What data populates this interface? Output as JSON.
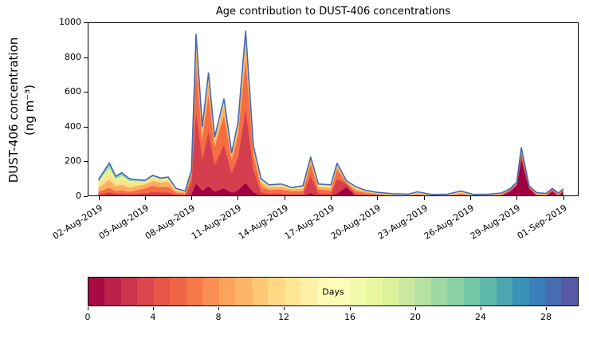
{
  "title": "Age contribution to DUST-406 concentrations",
  "ylabel": {
    "line1": "DUST-406 concentration",
    "line2": "(ng m⁻³)"
  },
  "chart_data": {
    "type": "area",
    "title": "Age contribution to DUST-406 concentrations",
    "xlabel": "",
    "ylabel": "DUST-406 concentration (ng m⁻³)",
    "ylim": [
      0,
      1000
    ],
    "yticks": [
      0,
      200,
      400,
      600,
      800,
      1000
    ],
    "xlim_days": [
      -0.7,
      31.0
    ],
    "xtick_days": [
      0,
      3,
      6,
      9,
      12,
      15,
      18,
      21,
      24,
      27,
      30
    ],
    "xtick_labels": [
      "02-Aug-2019",
      "05-Aug-2019",
      "08-Aug-2019",
      "11-Aug-2019",
      "14-Aug-2019",
      "17-Aug-2019",
      "20-Aug-2019",
      "23-Aug-2019",
      "26-Aug-2019",
      "29-Aug-2019",
      "01-Sep-2019"
    ],
    "grid": false,
    "legend": "none",
    "x_days": [
      0,
      0.4,
      0.7,
      1.1,
      1.5,
      2,
      2.5,
      3,
      3.5,
      4,
      4.5,
      5,
      5.6,
      6,
      6.3,
      6.7,
      7.1,
      7.5,
      8.1,
      8.6,
      9,
      9.5,
      10,
      10.5,
      11,
      11.8,
      12.5,
      13.2,
      13.7,
      14.2,
      15,
      15.4,
      16,
      16.6,
      17.2,
      18,
      19,
      20,
      20.6,
      21.5,
      22.5,
      23.4,
      24.2,
      25.2,
      26,
      26.6,
      27,
      27.3,
      27.8,
      28.3,
      28.9,
      29.3,
      29.7,
      30
    ],
    "series": [
      {
        "name": "age-0-2-days",
        "color": "#9e0142",
        "values": [
          4,
          6,
          8,
          5,
          5,
          4,
          4,
          5,
          6,
          5,
          6,
          2,
          1,
          12,
          74,
          32,
          57,
          27,
          45,
          20,
          34,
          76,
          23,
          3,
          2,
          2,
          1,
          3,
          18,
          2,
          3,
          15,
          53,
          1,
          1,
          1,
          1,
          0,
          1,
          0,
          0,
          1,
          0,
          0,
          1,
          27,
          60,
          210,
          45,
          1,
          1,
          27,
          1,
          25
        ]
      },
      {
        "name": "age-2-6-days",
        "color": "#d53e4f",
        "values": [
          8,
          12,
          15,
          9,
          11,
          8,
          11,
          13,
          18,
          16,
          16,
          7,
          5,
          67,
          419,
          180,
          319,
          153,
          252,
          112,
          189,
          427,
          130,
          20,
          13,
          14,
          10,
          9,
          101,
          14,
          10,
          85,
          18,
          11,
          7,
          4,
          1,
          1,
          4,
          1,
          1,
          5,
          1,
          1,
          3,
          9,
          8,
          28,
          6,
          4,
          2,
          9,
          3,
          8
        ]
      },
      {
        "name": "age-6-10-days",
        "color": "#f46d43",
        "values": [
          13,
          21,
          27,
          16,
          19,
          14,
          21,
          27,
          36,
          31,
          33,
          13,
          9,
          45,
          279,
          120,
          213,
          102,
          168,
          75,
          126,
          285,
          87,
          33,
          21,
          23,
          17,
          18,
          68,
          23,
          19,
          57,
          7,
          18,
          12,
          7,
          2,
          2,
          7,
          1,
          2,
          9,
          1,
          2,
          5,
          4,
          4,
          14,
          3,
          6,
          5,
          4,
          5,
          4
        ]
      },
      {
        "name": "age-10-14-days",
        "color": "#fdae61",
        "values": [
          23,
          36,
          46,
          28,
          32,
          24,
          23,
          23,
          30,
          26,
          28,
          11,
          8,
          15,
          93,
          40,
          71,
          34,
          56,
          25,
          42,
          95,
          29,
          24,
          16,
          17,
          12,
          15,
          23,
          17,
          16,
          19,
          5,
          13,
          8,
          5,
          3,
          3,
          6,
          2,
          3,
          7,
          2,
          3,
          4,
          2,
          3,
          11,
          2,
          5,
          4,
          2,
          4,
          2
        ]
      },
      {
        "name": "age-14-18-days",
        "color": "#fee08b",
        "values": [
          21,
          33,
          42,
          25,
          30,
          22,
          17,
          12,
          16,
          14,
          14,
          6,
          4,
          6,
          37,
          16,
          28,
          14,
          22,
          10,
          17,
          38,
          12,
          10,
          7,
          7,
          5,
          8,
          9,
          7,
          9,
          8,
          3,
          6,
          4,
          2,
          3,
          3,
          3,
          2,
          2,
          4,
          2,
          3,
          2,
          1,
          2,
          8,
          2,
          2,
          2,
          1,
          2,
          1
        ]
      },
      {
        "name": "age-18-22-days",
        "color": "#e6f598",
        "values": [
          13,
          21,
          27,
          16,
          19,
          14,
          10,
          6,
          8,
          7,
          8,
          3,
          2,
          3,
          19,
          8,
          14,
          7,
          11,
          5,
          8,
          19,
          6,
          5,
          3,
          4,
          3,
          4,
          4,
          4,
          5,
          4,
          2,
          3,
          2,
          1,
          2,
          2,
          2,
          2,
          2,
          2,
          2,
          2,
          2,
          1,
          1,
          4,
          1,
          1,
          1,
          1,
          2,
          1
        ]
      },
      {
        "name": "age-22-26-days",
        "color": "#abdda4",
        "values": [
          9,
          14,
          17,
          10,
          12,
          9,
          6,
          3,
          4,
          3,
          3,
          2,
          1,
          1,
          6,
          2,
          4,
          2,
          3,
          2,
          3,
          6,
          2,
          3,
          2,
          2,
          1,
          2,
          1,
          2,
          2,
          1,
          1,
          2,
          1,
          1,
          1,
          1,
          1,
          1,
          1,
          1,
          1,
          1,
          1,
          1,
          1,
          2,
          1,
          1,
          1,
          1,
          1,
          1
        ]
      },
      {
        "name": "age-26-30-days",
        "color": "#66c2a5",
        "values": [
          5,
          8,
          9,
          6,
          7,
          5,
          3,
          2,
          2,
          2,
          2,
          1,
          0,
          1,
          4,
          2,
          3,
          1,
          2,
          1,
          2,
          4,
          1,
          2,
          1,
          1,
          1,
          1,
          1,
          1,
          1,
          1,
          1,
          1,
          0,
          1,
          1,
          0,
          1,
          1,
          0,
          1,
          1,
          0,
          0,
          0,
          1,
          2,
          0,
          0,
          0,
          0,
          0,
          0
        ]
      }
    ],
    "total_line_color": "#4565ae",
    "colorbar": {
      "label": "Days",
      "min": 0,
      "max": 30,
      "ticks": [
        0,
        4,
        8,
        12,
        16,
        20,
        24,
        28
      ],
      "cells": 30,
      "anchors": [
        "#9e0142",
        "#d53e4f",
        "#f46d43",
        "#fdae61",
        "#fee08b",
        "#ffffbf",
        "#e6f598",
        "#abdda4",
        "#66c2a5",
        "#3288bd",
        "#5e4fa2"
      ]
    }
  }
}
